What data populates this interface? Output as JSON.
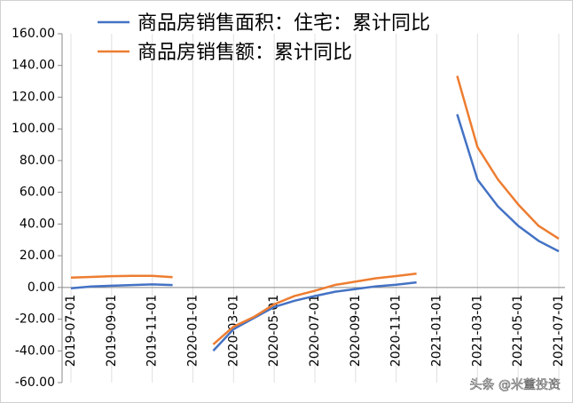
{
  "chart_data": {
    "type": "line",
    "categories": [
      "2019-07-01",
      null,
      "2019-09-01",
      null,
      "2019-11-01",
      null,
      "2020-01-01",
      null,
      "2020-03-01",
      null,
      "2020-05-01",
      null,
      "2020-07-01",
      null,
      "2020-09-01",
      null,
      "2020-11-01",
      null,
      "2021-01-01",
      null,
      "2021-03-01",
      null,
      "2021-05-01",
      null,
      "2021-07-01"
    ],
    "series": [
      {
        "name": "商品房销售面积：住宅：累计同比",
        "color": "#4472c4",
        "values": [
          -0.5,
          0.6,
          1.1,
          1.5,
          1.9,
          1.5,
          null,
          -39.9,
          -26.3,
          -19.3,
          -12.3,
          -8.4,
          -5.4,
          -2.7,
          -1.0,
          0.7,
          1.7,
          3.2,
          null,
          109.2,
          68.0,
          51.2,
          38.9,
          29.4,
          22.8
        ]
      },
      {
        "name": "商品房销售额：累计同比",
        "color": "#ed7d31",
        "values": [
          6.2,
          6.6,
          7.1,
          7.3,
          7.3,
          6.5,
          null,
          -35.9,
          -24.7,
          -18.6,
          -10.6,
          -5.4,
          -2.1,
          1.6,
          3.7,
          5.8,
          7.2,
          8.7,
          null,
          133.4,
          88.5,
          68.2,
          52.4,
          38.9,
          30.7
        ]
      }
    ],
    "ylim": [
      -60,
      160
    ],
    "yticks": [
      {
        "value": -60,
        "label": "-60.00"
      },
      {
        "value": -40,
        "label": "-40.00"
      },
      {
        "value": -20,
        "label": "-20.00"
      },
      {
        "value": 0,
        "label": "0.00"
      },
      {
        "value": 20,
        "label": "20.00"
      },
      {
        "value": 40,
        "label": "40.00"
      },
      {
        "value": 60,
        "label": "60.00"
      },
      {
        "value": 80,
        "label": "80.00"
      },
      {
        "value": 100,
        "label": "100.00"
      },
      {
        "value": 120,
        "label": "120.00"
      },
      {
        "value": 140,
        "label": "140.00"
      },
      {
        "value": 160,
        "label": "160.00"
      }
    ],
    "legend": "top",
    "watermark": "头条 @米董投资"
  }
}
